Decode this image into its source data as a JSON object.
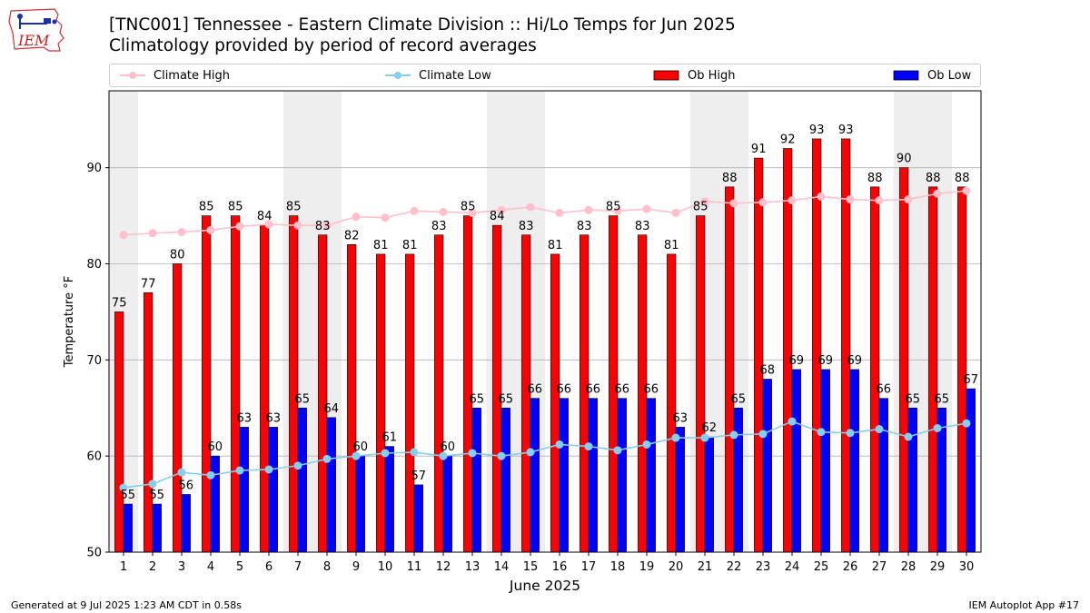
{
  "header": {
    "logo_text": "IEM",
    "title": "[TNC001] Tennessee - Eastern Climate Division :: Hi/Lo Temps for Jun 2025",
    "subtitle": "Climatology provided by period of record averages"
  },
  "legend": {
    "climate_high": "Climate High",
    "climate_low": "Climate Low",
    "ob_high": "Ob High",
    "ob_low": "Ob Low"
  },
  "footer": {
    "generated": "Generated at 9 Jul 2025 1:23 AM CDT in 0.58s",
    "app": "IEM Autoplot App #17"
  },
  "chart_data": {
    "type": "bar",
    "title": "[TNC001] Tennessee - Eastern Climate Division :: Hi/Lo Temps for Jun 2025",
    "subtitle": "Climatology provided by period of record averages",
    "xlabel": "June 2025",
    "ylabel": "Temperature °F",
    "ylim": [
      50,
      98
    ],
    "yticks": [
      50,
      60,
      70,
      80,
      90
    ],
    "grid": "y",
    "legend_position": "top",
    "weekend_shading_days": [
      1,
      7,
      8,
      14,
      15,
      21,
      22,
      28,
      29
    ],
    "categories": [
      1,
      2,
      3,
      4,
      5,
      6,
      7,
      8,
      9,
      10,
      11,
      12,
      13,
      14,
      15,
      16,
      17,
      18,
      19,
      20,
      21,
      22,
      23,
      24,
      25,
      26,
      27,
      28,
      29,
      30
    ],
    "series": [
      {
        "name": "Ob High",
        "kind": "bar",
        "color": "#ff0000",
        "values": [
          75,
          77,
          80,
          85,
          85,
          84,
          85,
          83,
          82,
          81,
          81,
          83,
          85,
          84,
          83,
          81,
          83,
          85,
          83,
          81,
          85,
          88,
          91,
          92,
          93,
          93,
          88,
          90,
          88,
          88
        ]
      },
      {
        "name": "Ob Low",
        "kind": "bar",
        "color": "#0000ff",
        "values": [
          55,
          55,
          56,
          60,
          63,
          63,
          65,
          64,
          60,
          61,
          57,
          60,
          65,
          65,
          66,
          66,
          66,
          66,
          66,
          63,
          62,
          65,
          68,
          69,
          69,
          69,
          66,
          65,
          65,
          67
        ]
      },
      {
        "name": "Climate High",
        "kind": "line",
        "color": "#ffc0cb",
        "values": [
          83.0,
          83.2,
          83.3,
          83.5,
          83.9,
          84.1,
          84.0,
          84.0,
          84.9,
          84.8,
          85.5,
          85.4,
          85.3,
          85.6,
          85.9,
          85.3,
          85.6,
          85.5,
          85.7,
          85.3,
          86.5,
          86.3,
          86.4,
          86.6,
          87.0,
          86.7,
          86.6,
          86.7,
          87.3,
          87.6
        ]
      },
      {
        "name": "Climate Low",
        "kind": "line",
        "color": "#87ceeb",
        "values": [
          56.7,
          57.1,
          58.3,
          58.0,
          58.5,
          58.6,
          59.0,
          59.7,
          60.0,
          60.3,
          60.4,
          60.0,
          60.3,
          60.0,
          60.4,
          61.2,
          61.0,
          60.6,
          61.2,
          61.9,
          61.9,
          62.2,
          62.3,
          63.6,
          62.5,
          62.4,
          62.8,
          62.0,
          62.9,
          63.4
        ]
      }
    ]
  }
}
